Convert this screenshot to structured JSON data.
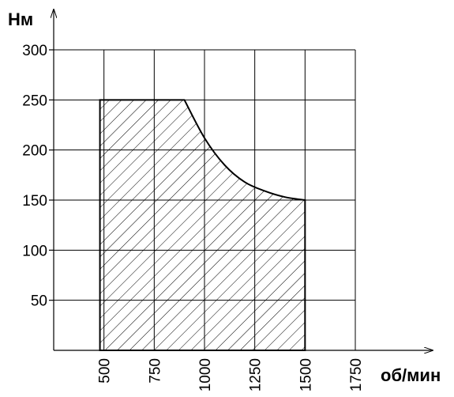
{
  "chart_data": {
    "type": "area",
    "ylabel": "Нм",
    "xlabel": "об/мин",
    "x_ticks": [
      500,
      750,
      1000,
      1250,
      1500,
      1750
    ],
    "y_ticks": [
      50,
      100,
      150,
      200,
      250,
      300
    ],
    "xlim": [
      250,
      1750
    ],
    "ylim": [
      0,
      300
    ],
    "grid": true,
    "hatched": true,
    "series": [
      {
        "x": [
          480,
          480,
          900,
          1000,
          1100,
          1200,
          1300,
          1400,
          1500,
          1500
        ],
        "y": [
          0,
          250,
          250,
          212,
          185,
          168,
          159,
          153,
          150,
          0
        ]
      }
    ]
  }
}
